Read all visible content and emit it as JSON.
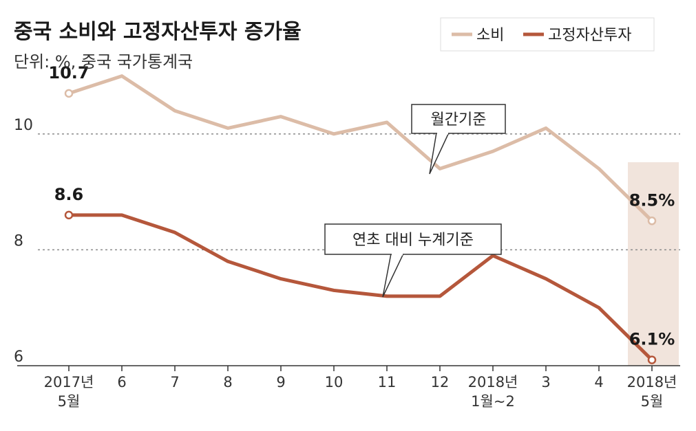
{
  "colors": {
    "consumption": "#dcbca7",
    "investment": "#b5573b",
    "highlight": "#f1e4dc",
    "grid": "#8a8a8a",
    "axis": "#333333"
  },
  "chart_data": {
    "type": "line",
    "title": "중국 소비와 고정자산투자 증가율",
    "subtitle": "단위: %, 중국 국가통계국",
    "categories": [
      [
        "2017년",
        "5월"
      ],
      [
        "6"
      ],
      [
        "7"
      ],
      [
        "8"
      ],
      [
        "9"
      ],
      [
        "10"
      ],
      [
        "11"
      ],
      [
        "12"
      ],
      [
        "2018년",
        "1월~2"
      ],
      [
        "3"
      ],
      [
        "4"
      ],
      [
        "2018년",
        "5월"
      ]
    ],
    "yticks": [
      6,
      8,
      10
    ],
    "ylim": [
      6,
      11.6
    ],
    "legend": [
      "소비",
      "고정자산투자"
    ],
    "series": [
      {
        "name": "소비",
        "key": "consumption",
        "values": [
          10.7,
          11.0,
          10.4,
          10.1,
          10.3,
          10.0,
          10.2,
          9.4,
          9.7,
          10.1,
          9.4,
          8.5
        ]
      },
      {
        "name": "고정자산투자",
        "key": "investment",
        "values": [
          8.6,
          8.6,
          8.3,
          7.8,
          7.5,
          7.3,
          7.2,
          7.2,
          7.9,
          7.5,
          7.0,
          6.1
        ]
      }
    ],
    "data_labels": [
      {
        "series": 0,
        "index": 0,
        "text": "10.7"
      },
      {
        "series": 1,
        "index": 0,
        "text": "8.6"
      },
      {
        "series": 0,
        "index": 11,
        "text": "8.5%"
      },
      {
        "series": 1,
        "index": 11,
        "text": "6.1%"
      }
    ],
    "annotations": [
      {
        "text": "월간기준",
        "series": 0
      },
      {
        "text": "연초 대비 누계기준",
        "series": 1
      }
    ]
  }
}
